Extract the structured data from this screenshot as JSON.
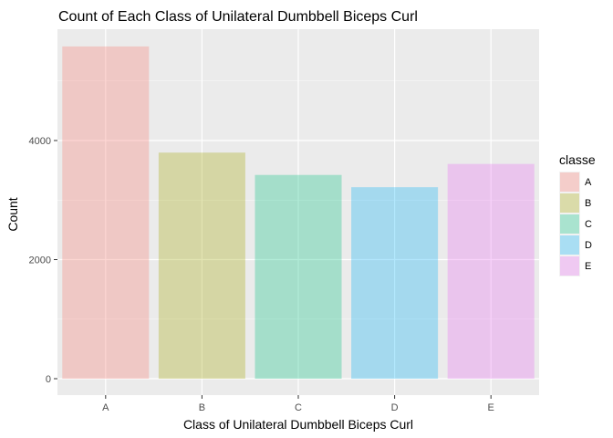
{
  "chart_data": {
    "type": "bar",
    "title": "Count of Each Class of Unilateral Dumbbell Biceps Curl",
    "xlabel": "Class of Unilateral Dumbbell Biceps Curl",
    "ylabel": "Count",
    "categories": [
      "A",
      "B",
      "C",
      "D",
      "E"
    ],
    "values": [
      5580,
      3797,
      3422,
      3216,
      3607
    ],
    "ylim": [
      0,
      5860
    ],
    "yticks": [
      0,
      2000,
      4000
    ],
    "ytick_labels": [
      "0",
      "2000",
      "4000"
    ],
    "grid": true,
    "legend": {
      "title": "classe",
      "position": "right",
      "entries": [
        "A",
        "B",
        "C",
        "D",
        "E"
      ]
    },
    "colors": [
      "#f8766d",
      "#a3a500",
      "#00bf7d",
      "#00b0f6",
      "#e76bf3"
    ],
    "bar_opacity": 0.3,
    "panel_background": "#ebebeb",
    "grid_color": "#ffffff"
  }
}
